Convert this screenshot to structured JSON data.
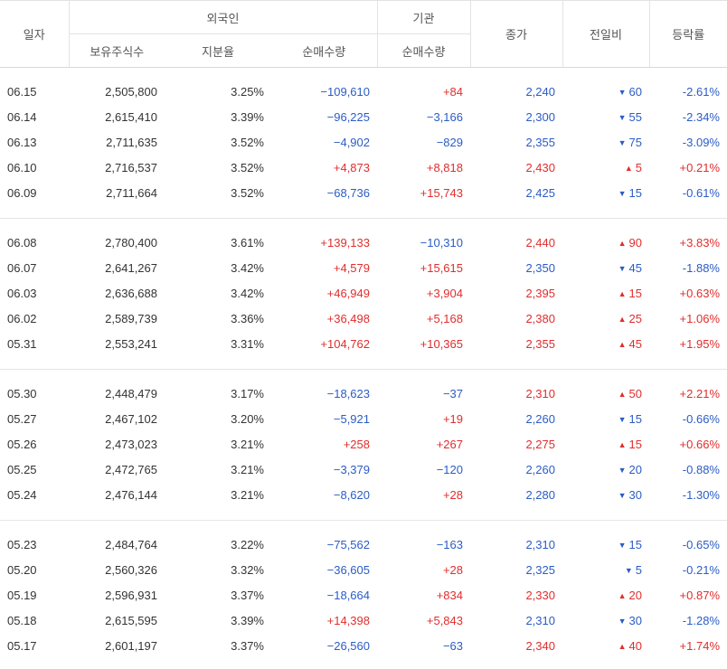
{
  "header": {
    "date": "일자",
    "foreign_group": "외국인",
    "inst_group": "기관",
    "close": "종가",
    "change": "전일비",
    "rate": "등락률",
    "holding": "보유주식수",
    "share_ratio": "지분율",
    "foreign_net": "순매수량",
    "inst_net": "순매수량"
  },
  "colors": {
    "up": "#e12d2d",
    "down": "#2b5cc5"
  },
  "groups": [
    [
      {
        "date": "06.15",
        "holding": "2,505,800",
        "ratio": "3.25%",
        "fnet": "−109,610",
        "inet": "+84",
        "close": "2,240",
        "chg": "60",
        "dir": "down",
        "rate": "-2.61%"
      },
      {
        "date": "06.14",
        "holding": "2,615,410",
        "ratio": "3.39%",
        "fnet": "−96,225",
        "inet": "−3,166",
        "close": "2,300",
        "chg": "55",
        "dir": "down",
        "rate": "-2.34%"
      },
      {
        "date": "06.13",
        "holding": "2,711,635",
        "ratio": "3.52%",
        "fnet": "−4,902",
        "inet": "−829",
        "close": "2,355",
        "chg": "75",
        "dir": "down",
        "rate": "-3.09%"
      },
      {
        "date": "06.10",
        "holding": "2,716,537",
        "ratio": "3.52%",
        "fnet": "+4,873",
        "inet": "+8,818",
        "close": "2,430",
        "chg": "5",
        "dir": "up",
        "rate": "+0.21%"
      },
      {
        "date": "06.09",
        "holding": "2,711,664",
        "ratio": "3.52%",
        "fnet": "−68,736",
        "inet": "+15,743",
        "close": "2,425",
        "chg": "15",
        "dir": "down",
        "rate": "-0.61%"
      }
    ],
    [
      {
        "date": "06.08",
        "holding": "2,780,400",
        "ratio": "3.61%",
        "fnet": "+139,133",
        "inet": "−10,310",
        "close": "2,440",
        "chg": "90",
        "dir": "up",
        "rate": "+3.83%"
      },
      {
        "date": "06.07",
        "holding": "2,641,267",
        "ratio": "3.42%",
        "fnet": "+4,579",
        "inet": "+15,615",
        "close": "2,350",
        "chg": "45",
        "dir": "down",
        "rate": "-1.88%"
      },
      {
        "date": "06.03",
        "holding": "2,636,688",
        "ratio": "3.42%",
        "fnet": "+46,949",
        "inet": "+3,904",
        "close": "2,395",
        "chg": "15",
        "dir": "up",
        "rate": "+0.63%"
      },
      {
        "date": "06.02",
        "holding": "2,589,739",
        "ratio": "3.36%",
        "fnet": "+36,498",
        "inet": "+5,168",
        "close": "2,380",
        "chg": "25",
        "dir": "up",
        "rate": "+1.06%"
      },
      {
        "date": "05.31",
        "holding": "2,553,241",
        "ratio": "3.31%",
        "fnet": "+104,762",
        "inet": "+10,365",
        "close": "2,355",
        "chg": "45",
        "dir": "up",
        "rate": "+1.95%"
      }
    ],
    [
      {
        "date": "05.30",
        "holding": "2,448,479",
        "ratio": "3.17%",
        "fnet": "−18,623",
        "inet": "−37",
        "close": "2,310",
        "chg": "50",
        "dir": "up",
        "rate": "+2.21%"
      },
      {
        "date": "05.27",
        "holding": "2,467,102",
        "ratio": "3.20%",
        "fnet": "−5,921",
        "inet": "+19",
        "close": "2,260",
        "chg": "15",
        "dir": "down",
        "rate": "-0.66%"
      },
      {
        "date": "05.26",
        "holding": "2,473,023",
        "ratio": "3.21%",
        "fnet": "+258",
        "inet": "+267",
        "close": "2,275",
        "chg": "15",
        "dir": "up",
        "rate": "+0.66%"
      },
      {
        "date": "05.25",
        "holding": "2,472,765",
        "ratio": "3.21%",
        "fnet": "−3,379",
        "inet": "−120",
        "close": "2,260",
        "chg": "20",
        "dir": "down",
        "rate": "-0.88%"
      },
      {
        "date": "05.24",
        "holding": "2,476,144",
        "ratio": "3.21%",
        "fnet": "−8,620",
        "inet": "+28",
        "close": "2,280",
        "chg": "30",
        "dir": "down",
        "rate": "-1.30%"
      }
    ],
    [
      {
        "date": "05.23",
        "holding": "2,484,764",
        "ratio": "3.22%",
        "fnet": "−75,562",
        "inet": "−163",
        "close": "2,310",
        "chg": "15",
        "dir": "down",
        "rate": "-0.65%"
      },
      {
        "date": "05.20",
        "holding": "2,560,326",
        "ratio": "3.32%",
        "fnet": "−36,605",
        "inet": "+28",
        "close": "2,325",
        "chg": "5",
        "dir": "down",
        "rate": "-0.21%"
      },
      {
        "date": "05.19",
        "holding": "2,596,931",
        "ratio": "3.37%",
        "fnet": "−18,664",
        "inet": "+834",
        "close": "2,330",
        "chg": "20",
        "dir": "up",
        "rate": "+0.87%"
      },
      {
        "date": "05.18",
        "holding": "2,615,595",
        "ratio": "3.39%",
        "fnet": "+14,398",
        "inet": "+5,843",
        "close": "2,310",
        "chg": "30",
        "dir": "down",
        "rate": "-1.28%"
      },
      {
        "date": "05.17",
        "holding": "2,601,197",
        "ratio": "3.37%",
        "fnet": "−26,560",
        "inet": "−63",
        "close": "2,340",
        "chg": "40",
        "dir": "up",
        "rate": "+1.74%"
      }
    ]
  ]
}
